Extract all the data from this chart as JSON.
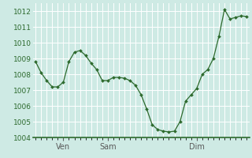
{
  "x_values": [
    0,
    1,
    2,
    3,
    4,
    5,
    6,
    7,
    8,
    9,
    10,
    11,
    12,
    13,
    14,
    15,
    16,
    17,
    18,
    19,
    20,
    21,
    22,
    23,
    24,
    25,
    26,
    27,
    28,
    29,
    30,
    31,
    32,
    33,
    34,
    35,
    36,
    37,
    38
  ],
  "y_values": [
    1008.8,
    1008.1,
    1007.6,
    1007.2,
    1007.2,
    1007.5,
    1008.8,
    1009.4,
    1009.5,
    1009.2,
    1008.7,
    1008.3,
    1007.6,
    1007.6,
    1007.8,
    1007.8,
    1007.75,
    1007.6,
    1007.3,
    1006.7,
    1005.8,
    1004.8,
    1004.5,
    1004.4,
    1004.35,
    1004.4,
    1005.0,
    1006.3,
    1006.7,
    1007.1,
    1008.0,
    1008.3,
    1009.0,
    1010.4,
    1012.1,
    1011.5,
    1011.6,
    1011.7,
    1011.65
  ],
  "ylim_min": 1004,
  "ylim_max": 1012.5,
  "yticks": [
    1004,
    1005,
    1006,
    1007,
    1008,
    1009,
    1010,
    1011,
    1012
  ],
  "line_color": "#2d6a2d",
  "marker_color": "#2d6a2d",
  "bg_color": "#ceeae4",
  "grid_color": "#ffffff",
  "vline_color": "#5a5a5a",
  "label_color": "#2d6a2d",
  "tick_label_fontsize": 6.5,
  "xlabel_fontsize": 7,
  "day_labels": [
    "Ven",
    "Sam",
    "Dim"
  ],
  "day_positions": [
    5,
    13,
    29
  ]
}
